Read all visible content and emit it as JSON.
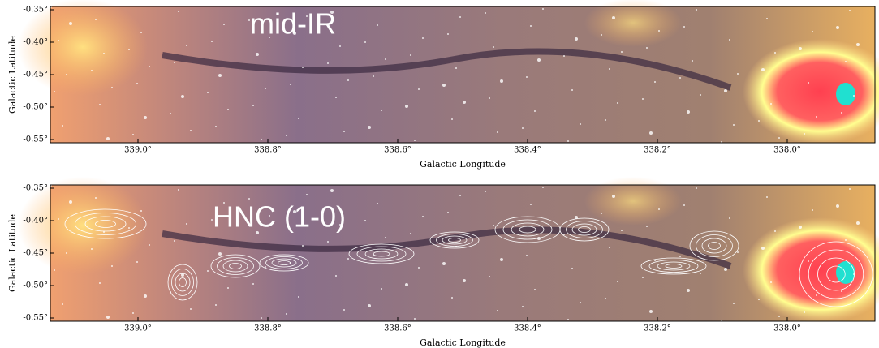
{
  "chart_data": [
    {
      "type": "image",
      "title": "mid-IR",
      "xlabel": "Galactic Longitude",
      "ylabel": "Galactic Latitude",
      "xlim": [
        339.135,
        337.865
      ],
      "ylim": [
        -0.345,
        -0.555
      ],
      "xticks": [
        {
          "value": 339.0,
          "label": "339.0°"
        },
        {
          "value": 338.8,
          "label": "338.8°"
        },
        {
          "value": 338.6,
          "label": "338.6°"
        },
        {
          "value": 338.4,
          "label": "338.4°"
        },
        {
          "value": 338.2,
          "label": "338.2°"
        },
        {
          "value": 338.0,
          "label": "338.0°"
        }
      ],
      "yticks": [
        {
          "value": -0.35,
          "label": "-0.35°"
        },
        {
          "value": -0.4,
          "label": "-0.40°"
        },
        {
          "value": -0.45,
          "label": "-0.45°"
        },
        {
          "value": -0.5,
          "label": "-0.50°"
        },
        {
          "value": -0.55,
          "label": "-0.55°"
        }
      ],
      "contours": false
    },
    {
      "type": "image",
      "title": "HNC (1-0)",
      "xlabel": "Galactic Longitude",
      "ylabel": "Galactic Latitude",
      "xlim": [
        339.135,
        337.865
      ],
      "ylim": [
        -0.345,
        -0.555
      ],
      "xticks": [
        {
          "value": 339.0,
          "label": "339.0°"
        },
        {
          "value": 338.8,
          "label": "338.8°"
        },
        {
          "value": 338.6,
          "label": "338.6°"
        },
        {
          "value": 338.4,
          "label": "338.4°"
        },
        {
          "value": 338.2,
          "label": "338.2°"
        },
        {
          "value": 338.0,
          "label": "338.0°"
        }
      ],
      "yticks": [
        {
          "value": -0.35,
          "label": "-0.35°"
        },
        {
          "value": -0.4,
          "label": "-0.40°"
        },
        {
          "value": -0.45,
          "label": "-0.45°"
        },
        {
          "value": -0.5,
          "label": "-0.50°"
        },
        {
          "value": -0.55,
          "label": "-0.55°"
        }
      ],
      "contours": true
    }
  ]
}
